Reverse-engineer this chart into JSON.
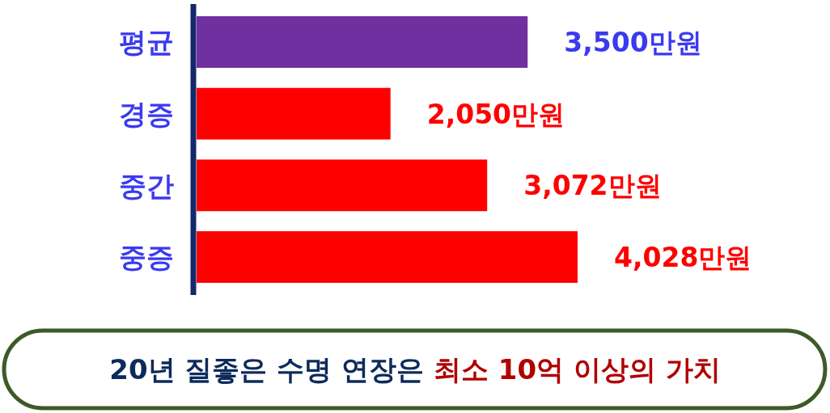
{
  "chart_data": {
    "type": "bar",
    "orientation": "horizontal",
    "categories": [
      "평균",
      "경증",
      "중간",
      "중증"
    ],
    "values": [
      3500,
      2050,
      3072,
      4028
    ],
    "colors": [
      "#7030a0",
      "#ff0000",
      "#ff0000",
      "#ff0000"
    ],
    "value_labels": [
      "3,500만원",
      "2,050만원",
      "3,072만원",
      "4,028만원"
    ],
    "annotations": [
      "20년 질좋은 수명 연장은",
      "최소 10억 이상의 가치"
    ]
  }
}
